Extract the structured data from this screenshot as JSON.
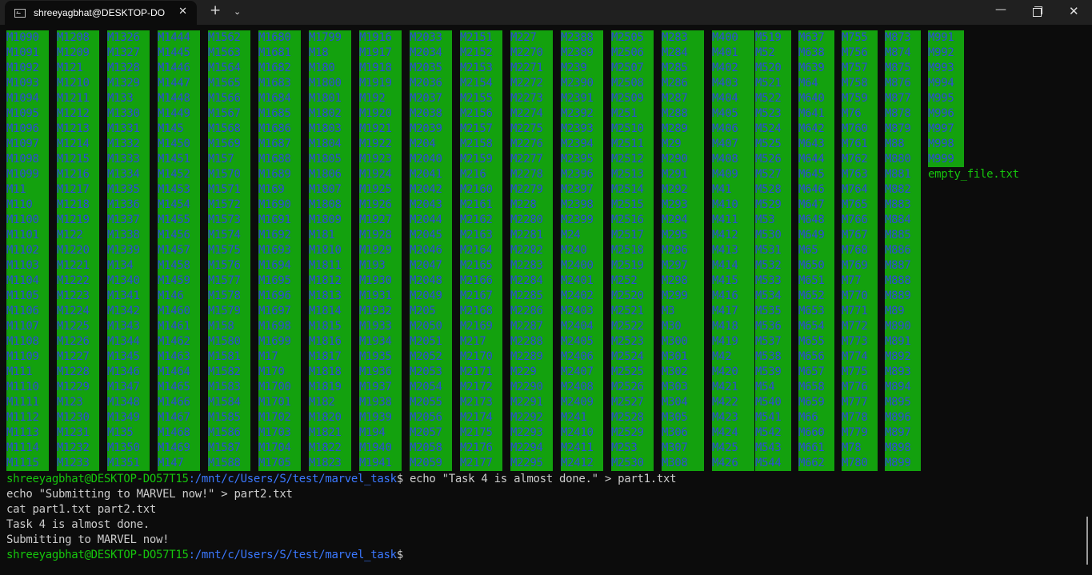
{
  "window": {
    "tab_title": "shreeyagbhat@DESKTOP-DO",
    "tab_close": "✕",
    "new_tab": "+",
    "dropdown": "⌄",
    "minimize": "—",
    "close": "✕"
  },
  "ls_columns": [
    [
      "M1090",
      "M1091",
      "M1092",
      "M1093",
      "M1094",
      "M1095",
      "M1096",
      "M1097",
      "M1098",
      "M1099",
      "M11",
      "M110",
      "M1100",
      "M1101",
      "M1102",
      "M1103",
      "M1104",
      "M1105",
      "M1106",
      "M1107",
      "M1108",
      "M1109",
      "M111",
      "M1110",
      "M1111",
      "M1112",
      "M1113",
      "M1114",
      "M1115"
    ],
    [
      "M1208",
      "M1209",
      "M121",
      "M1210",
      "M1211",
      "M1212",
      "M1213",
      "M1214",
      "M1215",
      "M1216",
      "M1217",
      "M1218",
      "M1219",
      "M122",
      "M1220",
      "M1221",
      "M1222",
      "M1223",
      "M1224",
      "M1225",
      "M1226",
      "M1227",
      "M1228",
      "M1229",
      "M123",
      "M1230",
      "M1231",
      "M1232",
      "M1233"
    ],
    [
      "M1326",
      "M1327",
      "M1328",
      "M1329",
      "M133",
      "M1330",
      "M1331",
      "M1332",
      "M1333",
      "M1334",
      "M1335",
      "M1336",
      "M1337",
      "M1338",
      "M1339",
      "M134",
      "M1340",
      "M1341",
      "M1342",
      "M1343",
      "M1344",
      "M1345",
      "M1346",
      "M1347",
      "M1348",
      "M1349",
      "M135",
      "M1350",
      "M1351"
    ],
    [
      "M1444",
      "M1445",
      "M1446",
      "M1447",
      "M1448",
      "M1449",
      "M145",
      "M1450",
      "M1451",
      "M1452",
      "M1453",
      "M1454",
      "M1455",
      "M1456",
      "M1457",
      "M1458",
      "M1459",
      "M146",
      "M1460",
      "M1461",
      "M1462",
      "M1463",
      "M1464",
      "M1465",
      "M1466",
      "M1467",
      "M1468",
      "M1469",
      "M147"
    ],
    [
      "M1562",
      "M1563",
      "M1564",
      "M1565",
      "M1566",
      "M1567",
      "M1568",
      "M1569",
      "M157",
      "M1570",
      "M1571",
      "M1572",
      "M1573",
      "M1574",
      "M1575",
      "M1576",
      "M1577",
      "M1578",
      "M1579",
      "M158",
      "M1580",
      "M1581",
      "M1582",
      "M1583",
      "M1584",
      "M1585",
      "M1586",
      "M1587",
      "M1588"
    ],
    [
      "M1680",
      "M1681",
      "M1682",
      "M1683",
      "M1684",
      "M1685",
      "M1686",
      "M1687",
      "M1688",
      "M1689",
      "M169",
      "M1690",
      "M1691",
      "M1692",
      "M1693",
      "M1694",
      "M1695",
      "M1696",
      "M1697",
      "M1698",
      "M1699",
      "M17",
      "M170",
      "M1700",
      "M1701",
      "M1702",
      "M1703",
      "M1704",
      "M1705"
    ],
    [
      "M1799",
      "M18",
      "M180",
      "M1800",
      "M1801",
      "M1802",
      "M1803",
      "M1804",
      "M1805",
      "M1806",
      "M1807",
      "M1808",
      "M1809",
      "M181",
      "M1810",
      "M1811",
      "M1812",
      "M1813",
      "M1814",
      "M1815",
      "M1816",
      "M1817",
      "M1818",
      "M1819",
      "M182",
      "M1820",
      "M1821",
      "M1822",
      "M1823"
    ],
    [
      "M1916",
      "M1917",
      "M1918",
      "M1919",
      "M192",
      "M1920",
      "M1921",
      "M1922",
      "M1923",
      "M1924",
      "M1925",
      "M1926",
      "M1927",
      "M1928",
      "M1929",
      "M193",
      "M1930",
      "M1931",
      "M1932",
      "M1933",
      "M1934",
      "M1935",
      "M1936",
      "M1937",
      "M1938",
      "M1939",
      "M194",
      "M1940",
      "M1941"
    ],
    [
      "M2033",
      "M2034",
      "M2035",
      "M2036",
      "M2037",
      "M2038",
      "M2039",
      "M204",
      "M2040",
      "M2041",
      "M2042",
      "M2043",
      "M2044",
      "M2045",
      "M2046",
      "M2047",
      "M2048",
      "M2049",
      "M205",
      "M2050",
      "M2051",
      "M2052",
      "M2053",
      "M2054",
      "M2055",
      "M2056",
      "M2057",
      "M2058",
      "M2059"
    ],
    [
      "M2151",
      "M2152",
      "M2153",
      "M2154",
      "M2155",
      "M2156",
      "M2157",
      "M2158",
      "M2159",
      "M216",
      "M2160",
      "M2161",
      "M2162",
      "M2163",
      "M2164",
      "M2165",
      "M2166",
      "M2167",
      "M2168",
      "M2169",
      "M217",
      "M2170",
      "M2171",
      "M2172",
      "M2173",
      "M2174",
      "M2175",
      "M2176",
      "M2177"
    ],
    [
      "M227",
      "M2270",
      "M2271",
      "M2272",
      "M2273",
      "M2274",
      "M2275",
      "M2276",
      "M2277",
      "M2278",
      "M2279",
      "M228",
      "M2280",
      "M2281",
      "M2282",
      "M2283",
      "M2284",
      "M2285",
      "M2286",
      "M2287",
      "M2288",
      "M2289",
      "M229",
      "M2290",
      "M2291",
      "M2292",
      "M2293",
      "M2294",
      "M2295"
    ],
    [
      "M2388",
      "M2389",
      "M239",
      "M2390",
      "M2391",
      "M2392",
      "M2393",
      "M2394",
      "M2395",
      "M2396",
      "M2397",
      "M2398",
      "M2399",
      "M24",
      "M240",
      "M2400",
      "M2401",
      "M2402",
      "M2403",
      "M2404",
      "M2405",
      "M2406",
      "M2407",
      "M2408",
      "M2409",
      "M241",
      "M2410",
      "M2411",
      "M2412"
    ],
    [
      "M2505",
      "M2506",
      "M2507",
      "M2508",
      "M2509",
      "M251",
      "M2510",
      "M2511",
      "M2512",
      "M2513",
      "M2514",
      "M2515",
      "M2516",
      "M2517",
      "M2518",
      "M2519",
      "M252",
      "M2520",
      "M2521",
      "M2522",
      "M2523",
      "M2524",
      "M2525",
      "M2526",
      "M2527",
      "M2528",
      "M2529",
      "M253",
      "M2530"
    ],
    [
      "M283",
      "M284",
      "M285",
      "M286",
      "M287",
      "M288",
      "M289",
      "M29",
      "M290",
      "M291",
      "M292",
      "M293",
      "M294",
      "M295",
      "M296",
      "M297",
      "M298",
      "M299",
      "M3",
      "M30",
      "M300",
      "M301",
      "M302",
      "M303",
      "M304",
      "M305",
      "M306",
      "M307",
      "M308"
    ],
    [
      "M400",
      "M401",
      "M402",
      "M403",
      "M404",
      "M405",
      "M406",
      "M407",
      "M408",
      "M409",
      "M41",
      "M410",
      "M411",
      "M412",
      "M413",
      "M414",
      "M415",
      "M416",
      "M417",
      "M418",
      "M419",
      "M42",
      "M420",
      "M421",
      "M422",
      "M423",
      "M424",
      "M425",
      "M426"
    ],
    [
      "M519",
      "M52",
      "M520",
      "M521",
      "M522",
      "M523",
      "M524",
      "M525",
      "M526",
      "M527",
      "M528",
      "M529",
      "M53",
      "M530",
      "M531",
      "M532",
      "M533",
      "M534",
      "M535",
      "M536",
      "M537",
      "M538",
      "M539",
      "M54",
      "M540",
      "M541",
      "M542",
      "M543",
      "M544"
    ],
    [
      "M637",
      "M638",
      "M639",
      "M64",
      "M640",
      "M641",
      "M642",
      "M643",
      "M644",
      "M645",
      "M646",
      "M647",
      "M648",
      "M649",
      "M65",
      "M650",
      "M651",
      "M652",
      "M653",
      "M654",
      "M655",
      "M656",
      "M657",
      "M658",
      "M659",
      "M66",
      "M660",
      "M661",
      "M662"
    ],
    [
      "M755",
      "M756",
      "M757",
      "M758",
      "M759",
      "M76",
      "M760",
      "M761",
      "M762",
      "M763",
      "M764",
      "M765",
      "M766",
      "M767",
      "M768",
      "M769",
      "M77",
      "M770",
      "M771",
      "M772",
      "M773",
      "M774",
      "M775",
      "M776",
      "M777",
      "M778",
      "M779",
      "M78",
      "M780"
    ],
    [
      "M873",
      "M874",
      "M875",
      "M876",
      "M877",
      "M878",
      "M879",
      "M88",
      "M880",
      "M881",
      "M882",
      "M883",
      "M884",
      "M885",
      "M886",
      "M887",
      "M888",
      "M889",
      "M89",
      "M890",
      "M891",
      "M892",
      "M893",
      "M894",
      "M895",
      "M896",
      "M897",
      "M898",
      "M899"
    ],
    [
      "M991",
      "M992",
      "M993",
      "M994",
      "M995",
      "M996",
      "M997",
      "M998",
      "M999",
      "empty_file.txt"
    ]
  ],
  "terminal": {
    "prompt_user": "shreeyagbhat@DESKTOP-DO57T15",
    "prompt_path": ":/mnt/c/Users/S/test/marvel_task",
    "prompt_symbol": "$",
    "cmd1": " echo \"Task 4 is almost done.\" > part1.txt",
    "line2": "echo \"Submitting to MARVEL now!\" > part2.txt",
    "line3": "cat part1.txt part2.txt",
    "output1": "Task 4 is almost done.",
    "output2": "Submitting to MARVEL now!"
  },
  "colors": {
    "ls_background": "#13a10e",
    "ls_text": "#2d4bd6",
    "prompt_user": "#16c60c",
    "prompt_path": "#3b78ff"
  }
}
